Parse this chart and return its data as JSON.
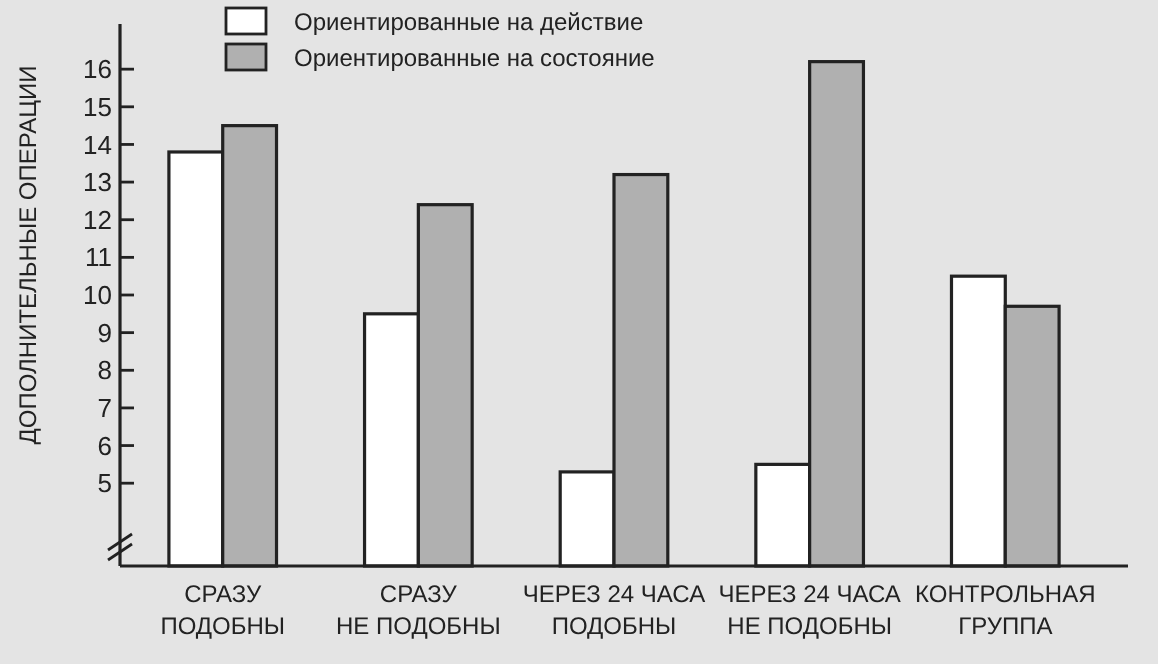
{
  "chart_data": {
    "type": "bar",
    "ylabel": "ДОПОЛНИТЕЛЬНЫЕ ОПЕРАЦИИ",
    "categories": [
      "СРАЗУ\nПОДОБНЫ",
      "СРАЗУ\nНЕ ПОДОБНЫ",
      "ЧЕРЕЗ 24 ЧАСА\nПОДОБНЫ",
      "ЧЕРЕЗ 24 ЧАСА\nНЕ ПОДОБНЫ",
      "КОНТРОЛЬНАЯ\nГРУППА"
    ],
    "series": [
      {
        "name": "Ориентированные на действие",
        "color": "#ffffff",
        "values": [
          13.8,
          9.5,
          5.3,
          5.5,
          10.5
        ]
      },
      {
        "name": "Ориентированные на состояние",
        "color": "#b0b0b0",
        "values": [
          14.5,
          12.4,
          13.2,
          16.2,
          9.7
        ]
      }
    ],
    "ylim": [
      2.8,
      17.2
    ],
    "yticks": [
      5,
      6,
      7,
      8,
      9,
      10,
      11,
      12,
      13,
      14,
      15,
      16
    ],
    "grid": false,
    "legend": "top"
  }
}
